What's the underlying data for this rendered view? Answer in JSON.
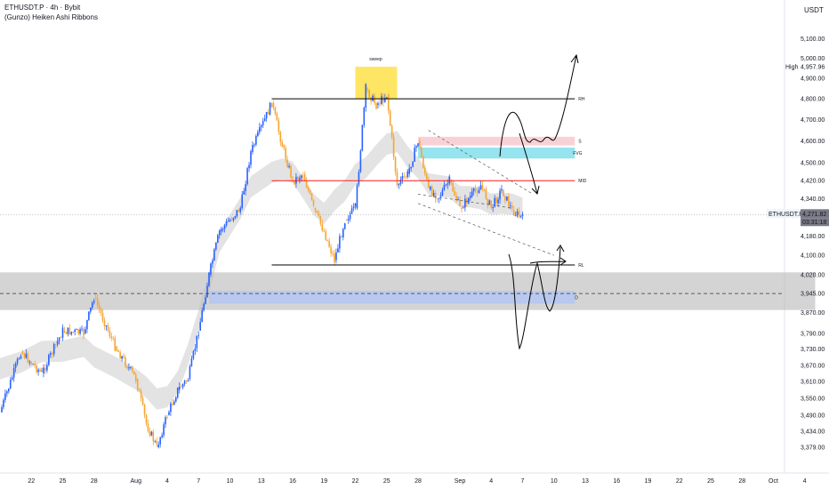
{
  "header": {
    "symbol_line": "ETHUSDT.P · 4h · Bybit",
    "indicator": "(Gunzo) Heiken Ashi Ribbons",
    "currency": "USDT"
  },
  "badges": {
    "high_label": "High",
    "high_value": "4,957.96",
    "symbol": "ETHUSDT.P",
    "last_price": "4,271.82",
    "countdown": "03:31:18"
  },
  "colors": {
    "bull_candle": "#2962ff",
    "bear_candle": "#f7a531",
    "ribbon": "#dcdcdc",
    "range_line": "#000000",
    "mid_line": "#ff1a1a",
    "sweep_box": "#ffe45c",
    "supply_box": "#f8cfd4",
    "fvg_box": "#8fe3ee",
    "demand_zone": "#bdbdbd",
    "discount_box": "#b3c6f2",
    "price_badge": "#787b86"
  },
  "annotations": {
    "sweep": "sweep",
    "range_high": "RH",
    "range_low": "RL",
    "mid": "MID",
    "supply": "S",
    "fvg": "FVG",
    "discount": "D"
  },
  "chart_data": {
    "type": "candlestick",
    "interval": "4h",
    "y_scale": "log",
    "ylim": [
      3379,
      5200
    ],
    "y_ticks": [
      {
        "value": 5100,
        "label": "5,100.00"
      },
      {
        "value": 5000,
        "label": "5,000.00"
      },
      {
        "value": 4900,
        "label": "4,900.00"
      },
      {
        "value": 4800,
        "label": "4,800.00"
      },
      {
        "value": 4700,
        "label": "4,700.00"
      },
      {
        "value": 4600,
        "label": "4,600.00"
      },
      {
        "value": 4500,
        "label": "4,500.00"
      },
      {
        "value": 4420,
        "label": "4,420.00"
      },
      {
        "value": 4340,
        "label": "4,340.00"
      },
      {
        "value": 4180,
        "label": "4,180.00"
      },
      {
        "value": 4100,
        "label": "4,100.00"
      },
      {
        "value": 4020,
        "label": "4,020.00"
      },
      {
        "value": 3945,
        "label": "3,945.00"
      },
      {
        "value": 3870,
        "label": "3,870.00"
      },
      {
        "value": 3790,
        "label": "3,790.00"
      },
      {
        "value": 3730,
        "label": "3,730.00"
      },
      {
        "value": 3670,
        "label": "3,670.00"
      },
      {
        "value": 3610,
        "label": "3,610.00"
      },
      {
        "value": 3550,
        "label": "3,550.00"
      },
      {
        "value": 3490,
        "label": "3,490.00"
      },
      {
        "value": 3434,
        "label": "3,434.00"
      },
      {
        "value": 3379,
        "label": "3,379.00"
      }
    ],
    "x_ticks": [
      {
        "date": "2025-07-22",
        "label": "22"
      },
      {
        "date": "2025-07-25",
        "label": "25"
      },
      {
        "date": "2025-07-28",
        "label": "28"
      },
      {
        "date": "2025-08-01",
        "label": "Aug"
      },
      {
        "date": "2025-08-04",
        "label": "4"
      },
      {
        "date": "2025-08-07",
        "label": "7"
      },
      {
        "date": "2025-08-10",
        "label": "10"
      },
      {
        "date": "2025-08-13",
        "label": "13"
      },
      {
        "date": "2025-08-16",
        "label": "16"
      },
      {
        "date": "2025-08-19",
        "label": "19"
      },
      {
        "date": "2025-08-22",
        "label": "22"
      },
      {
        "date": "2025-08-25",
        "label": "25"
      },
      {
        "date": "2025-08-28",
        "label": "28"
      },
      {
        "date": "2025-09-01",
        "label": "Sep"
      },
      {
        "date": "2025-09-04",
        "label": "4"
      },
      {
        "date": "2025-09-07",
        "label": "7"
      },
      {
        "date": "2025-09-10",
        "label": "10"
      },
      {
        "date": "2025-09-13",
        "label": "13"
      },
      {
        "date": "2025-09-16",
        "label": "16"
      },
      {
        "date": "2025-09-19",
        "label": "19"
      },
      {
        "date": "2025-09-22",
        "label": "22"
      },
      {
        "date": "2025-09-25",
        "label": "25"
      },
      {
        "date": "2025-09-28",
        "label": "28"
      },
      {
        "date": "2025-10-01",
        "label": "Oct"
      },
      {
        "date": "2025-10-04",
        "label": "4"
      }
    ],
    "price_path": [
      [
        "2025-07-19",
        3500
      ],
      [
        "2025-07-21",
        3720
      ],
      [
        "2025-07-23",
        3640
      ],
      [
        "2025-07-25",
        3800
      ],
      [
        "2025-07-27",
        3790
      ],
      [
        "2025-07-28",
        3930
      ],
      [
        "2025-07-30",
        3740
      ],
      [
        "2025-08-01",
        3620
      ],
      [
        "2025-08-02",
        3460
      ],
      [
        "2025-08-03",
        3379
      ],
      [
        "2025-08-04",
        3490
      ],
      [
        "2025-08-05",
        3580
      ],
      [
        "2025-08-06",
        3620
      ],
      [
        "2025-08-07",
        3800
      ],
      [
        "2025-08-08",
        4020
      ],
      [
        "2025-08-09",
        4200
      ],
      [
        "2025-08-11",
        4300
      ],
      [
        "2025-08-12",
        4550
      ],
      [
        "2025-08-14",
        4780
      ],
      [
        "2025-08-15",
        4580
      ],
      [
        "2025-08-16",
        4420
      ],
      [
        "2025-08-17",
        4450
      ],
      [
        "2025-08-18",
        4300
      ],
      [
        "2025-08-19",
        4200
      ],
      [
        "2025-08-20",
        4080
      ],
      [
        "2025-08-21",
        4250
      ],
      [
        "2025-08-22",
        4300
      ],
      [
        "2025-08-23",
        4850
      ],
      [
        "2025-08-24",
        4770
      ],
      [
        "2025-08-25",
        4820
      ],
      [
        "2025-08-26",
        4400
      ],
      [
        "2025-08-27",
        4450
      ],
      [
        "2025-08-28",
        4600
      ],
      [
        "2025-08-29",
        4380
      ],
      [
        "2025-08-30",
        4350
      ],
      [
        "2025-08-31",
        4420
      ],
      [
        "2025-09-01",
        4300
      ],
      [
        "2025-09-02",
        4350
      ],
      [
        "2025-09-03",
        4400
      ],
      [
        "2025-09-04",
        4300
      ],
      [
        "2025-09-05",
        4380
      ],
      [
        "2025-09-06",
        4290
      ],
      [
        "2025-09-07",
        4255
      ]
    ],
    "last_price": 4271.82,
    "high": 4957.96,
    "levels": {
      "range_high": 4800,
      "range_low": 4060,
      "mid": 4420,
      "dashed": 3945
    },
    "zones": {
      "sweep": {
        "from": "2025-08-22",
        "to": "2025-08-26",
        "low": 4800,
        "high": 4958
      },
      "supply": {
        "from": "2025-08-28",
        "to": "2025-09-12",
        "low": 4580,
        "high": 4620
      },
      "fvg": {
        "from": "2025-08-28",
        "to": "2025-09-12",
        "low": 4520,
        "high": 4570
      },
      "demand": {
        "from": "2025-07-19",
        "to": "2025-10-05",
        "low": 3880,
        "high": 4030
      },
      "discount": {
        "from": "2025-08-08",
        "to": "2025-09-12",
        "low": 3905,
        "high": 3955
      }
    },
    "channel": {
      "upper": [
        [
          "2025-08-29",
          4650
        ],
        [
          "2025-09-08",
          4360
        ]
      ],
      "lower": [
        [
          "2025-08-28",
          4320
        ],
        [
          "2025-09-10",
          4100
        ]
      ],
      "inner": [
        [
          "2025-08-28",
          4360
        ],
        [
          "2025-09-06",
          4300
        ]
      ]
    }
  }
}
